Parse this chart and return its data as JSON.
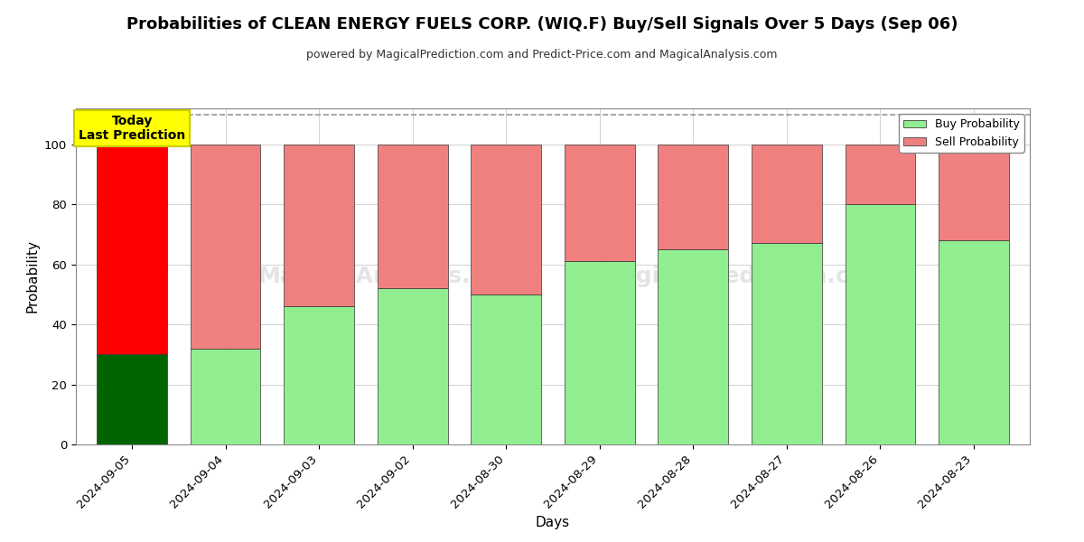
{
  "title": "Probabilities of CLEAN ENERGY FUELS CORP. (WIQ.F) Buy/Sell Signals Over 5 Days (Sep 06)",
  "subtitle": "powered by MagicalPrediction.com and Predict-Price.com and MagicalAnalysis.com",
  "xlabel": "Days",
  "ylabel": "Probability",
  "categories": [
    "2024-09-05",
    "2024-09-04",
    "2024-09-03",
    "2024-09-02",
    "2024-08-30",
    "2024-08-29",
    "2024-08-28",
    "2024-08-27",
    "2024-08-26",
    "2024-08-23"
  ],
  "buy_values": [
    30,
    32,
    46,
    52,
    50,
    61,
    65,
    67,
    80,
    68
  ],
  "sell_values": [
    70,
    68,
    54,
    48,
    50,
    39,
    35,
    33,
    20,
    32
  ],
  "buy_colors": [
    "#006400",
    "#90EE90",
    "#90EE90",
    "#90EE90",
    "#90EE90",
    "#90EE90",
    "#90EE90",
    "#90EE90",
    "#90EE90",
    "#90EE90"
  ],
  "sell_colors": [
    "#FF0000",
    "#F08080",
    "#F08080",
    "#F08080",
    "#F08080",
    "#F08080",
    "#F08080",
    "#F08080",
    "#F08080",
    "#F08080"
  ],
  "ylim": [
    0,
    112
  ],
  "yticks": [
    0,
    20,
    40,
    60,
    80,
    100
  ],
  "dashed_line_y": 110,
  "today_box_text": "Today\nLast Prediction",
  "today_box_color": "#FFFF00",
  "legend_buy_label": "Buy Probability",
  "legend_sell_label": "Sell Probability",
  "legend_buy_color": "#90EE90",
  "legend_sell_color": "#F08080",
  "background_color": "#FFFFFF",
  "grid_color": "#AAAAAA",
  "bar_edge_color": "#333333",
  "bar_width": 0.75
}
